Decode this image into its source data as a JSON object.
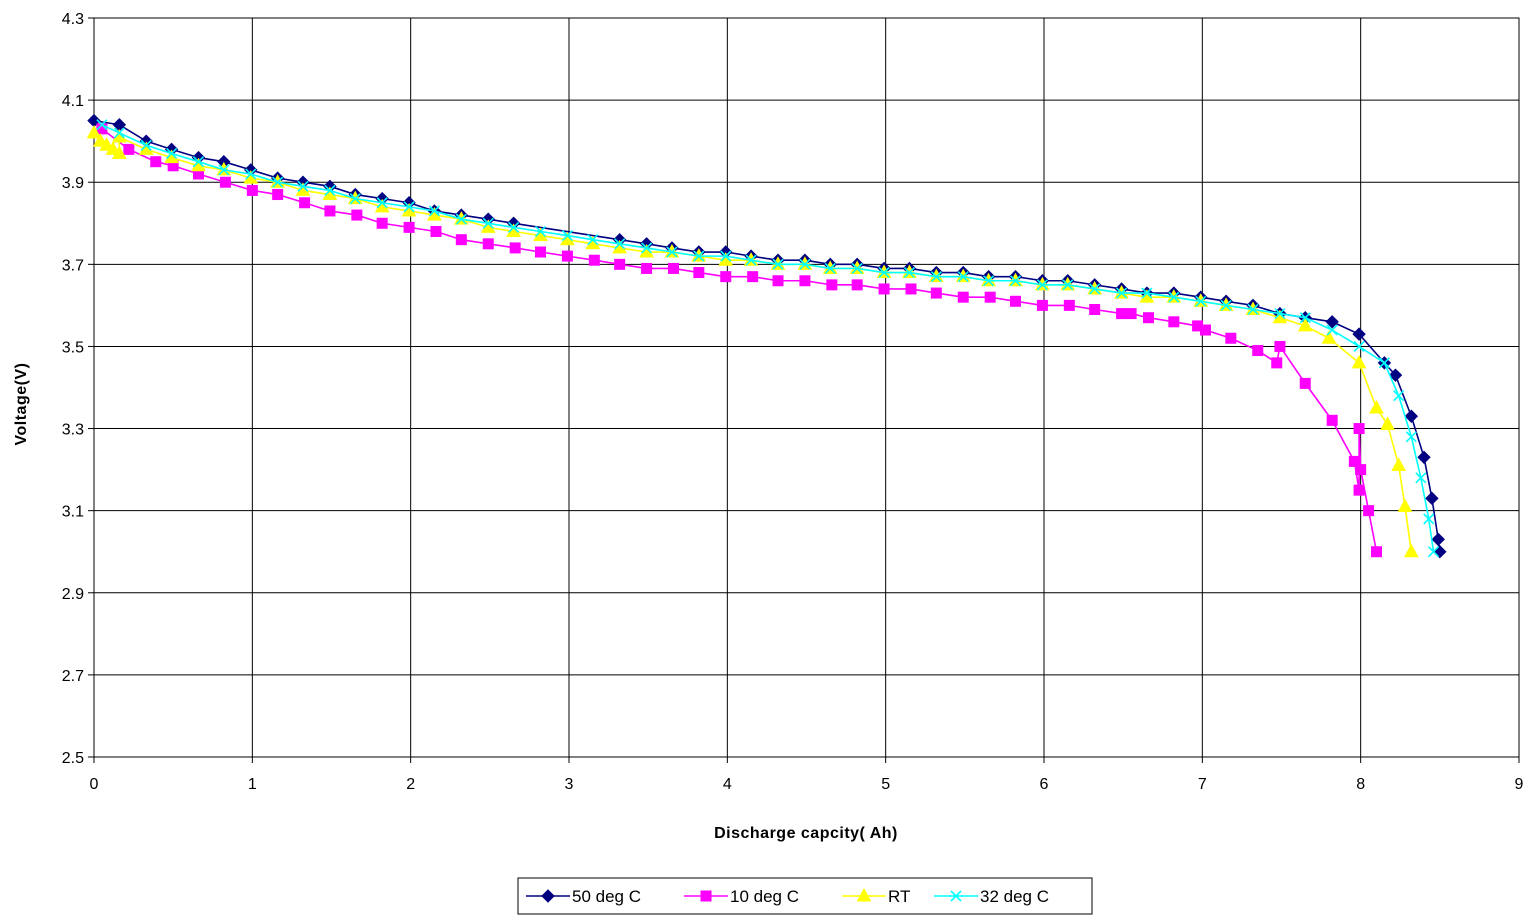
{
  "chart_data": {
    "type": "line",
    "title": "",
    "xlabel": "Discharge capcity( Ah)",
    "ylabel": "Voltage(V)",
    "xlim": [
      0,
      9
    ],
    "ylim": [
      2.5,
      4.3
    ],
    "x_ticks": [
      "0",
      "1",
      "2",
      "3",
      "4",
      "5",
      "6",
      "7",
      "8",
      "9"
    ],
    "y_ticks": [
      "2.5",
      "2.7",
      "2.9",
      "3.1",
      "3.3",
      "3.5",
      "3.7",
      "3.9",
      "4.1",
      "4.3"
    ],
    "grid": true,
    "legend_position": "bottom",
    "series": [
      {
        "name": "50 deg C",
        "color": "#000080",
        "marker": "diamond",
        "x": [
          0.0,
          0.16,
          0.33,
          0.49,
          0.66,
          0.82,
          0.99,
          1.16,
          1.32,
          1.49,
          1.65,
          1.82,
          1.99,
          2.15,
          2.32,
          2.49,
          2.65,
          3.32,
          3.49,
          3.65,
          3.82,
          3.99,
          4.15,
          4.32,
          4.49,
          4.65,
          4.82,
          4.99,
          5.15,
          5.32,
          5.49,
          5.65,
          5.82,
          5.99,
          6.15,
          6.32,
          6.49,
          6.65,
          6.82,
          6.99,
          7.15,
          7.32,
          7.49,
          7.65,
          7.82,
          7.99,
          8.15,
          8.22,
          8.32,
          8.4,
          8.45,
          8.49,
          8.5
        ],
        "y": [
          4.05,
          4.04,
          4.0,
          3.98,
          3.96,
          3.95,
          3.93,
          3.91,
          3.9,
          3.89,
          3.87,
          3.86,
          3.85,
          3.83,
          3.82,
          3.81,
          3.8,
          3.76,
          3.75,
          3.74,
          3.73,
          3.73,
          3.72,
          3.71,
          3.71,
          3.7,
          3.7,
          3.69,
          3.69,
          3.68,
          3.68,
          3.67,
          3.67,
          3.66,
          3.66,
          3.65,
          3.64,
          3.63,
          3.63,
          3.62,
          3.61,
          3.6,
          3.58,
          3.57,
          3.56,
          3.53,
          3.46,
          3.43,
          3.33,
          3.23,
          3.13,
          3.03,
          3.0
        ]
      },
      {
        "name": "10 deg C",
        "color": "#FF00FF",
        "marker": "square",
        "x": [
          0.05,
          0.22,
          0.39,
          0.5,
          0.66,
          0.83,
          1.0,
          1.16,
          1.33,
          1.49,
          1.66,
          1.82,
          1.99,
          2.16,
          2.32,
          2.49,
          2.66,
          2.82,
          2.99,
          3.16,
          3.32,
          3.49,
          3.66,
          3.82,
          3.99,
          4.16,
          4.32,
          4.49,
          4.66,
          4.82,
          4.99,
          5.16,
          5.32,
          5.49,
          5.66,
          5.82,
          5.99,
          6.16,
          6.32,
          6.49,
          6.55,
          6.66,
          6.82,
          6.97,
          7.02,
          7.18,
          7.35,
          7.47,
          7.49,
          7.65,
          7.82,
          7.96,
          7.99,
          7.99,
          8.0,
          8.05,
          8.1
        ],
        "y": [
          4.03,
          3.98,
          3.95,
          3.94,
          3.92,
          3.9,
          3.88,
          3.87,
          3.85,
          3.83,
          3.82,
          3.8,
          3.79,
          3.78,
          3.76,
          3.75,
          3.74,
          3.73,
          3.72,
          3.71,
          3.7,
          3.69,
          3.69,
          3.68,
          3.67,
          3.67,
          3.66,
          3.66,
          3.65,
          3.65,
          3.64,
          3.64,
          3.63,
          3.62,
          3.62,
          3.61,
          3.6,
          3.6,
          3.59,
          3.58,
          3.58,
          3.57,
          3.56,
          3.55,
          3.54,
          3.52,
          3.49,
          3.46,
          3.5,
          3.41,
          3.32,
          3.22,
          3.15,
          3.3,
          3.2,
          3.1,
          3.0
        ]
      },
      {
        "name": "RT",
        "color": "#FFFF00",
        "marker": "triangle",
        "x": [
          0.0,
          0.04,
          0.08,
          0.12,
          0.16,
          0.16,
          0.33,
          0.49,
          0.66,
          0.82,
          0.99,
          1.16,
          1.32,
          1.49,
          1.65,
          1.82,
          1.99,
          2.15,
          2.32,
          2.49,
          2.65,
          2.82,
          2.99,
          3.15,
          3.32,
          3.49,
          3.65,
          3.82,
          3.99,
          4.15,
          4.32,
          4.49,
          4.65,
          4.82,
          4.99,
          5.15,
          5.32,
          5.49,
          5.65,
          5.82,
          5.99,
          6.15,
          6.32,
          6.49,
          6.65,
          6.82,
          6.99,
          7.15,
          7.32,
          7.49,
          7.65,
          7.8,
          7.99,
          8.1,
          8.17,
          8.24,
          8.28,
          8.32
        ],
        "y": [
          4.02,
          4.0,
          3.99,
          3.98,
          3.97,
          4.01,
          3.98,
          3.96,
          3.94,
          3.93,
          3.91,
          3.9,
          3.88,
          3.87,
          3.86,
          3.84,
          3.83,
          3.82,
          3.81,
          3.79,
          3.78,
          3.77,
          3.76,
          3.75,
          3.74,
          3.73,
          3.73,
          3.72,
          3.71,
          3.71,
          3.7,
          3.7,
          3.69,
          3.69,
          3.68,
          3.68,
          3.67,
          3.67,
          3.66,
          3.66,
          3.65,
          3.65,
          3.64,
          3.63,
          3.62,
          3.62,
          3.61,
          3.6,
          3.59,
          3.57,
          3.55,
          3.52,
          3.46,
          3.35,
          3.31,
          3.21,
          3.11,
          3.0
        ]
      },
      {
        "name": "32 deg C",
        "color": "#00FFFF",
        "marker": "x",
        "x": [
          0.05,
          0.16,
          0.33,
          0.49,
          0.66,
          0.82,
          0.99,
          1.16,
          1.32,
          1.49,
          1.65,
          1.82,
          1.99,
          2.15,
          2.32,
          2.49,
          2.65,
          2.82,
          2.99,
          3.15,
          3.32,
          3.49,
          3.65,
          3.82,
          3.99,
          4.15,
          4.32,
          4.49,
          4.65,
          4.82,
          4.99,
          5.15,
          5.32,
          5.49,
          5.65,
          5.82,
          5.99,
          6.15,
          6.32,
          6.49,
          6.65,
          6.82,
          6.99,
          7.15,
          7.32,
          7.49,
          7.65,
          7.82,
          7.99,
          8.15,
          8.24,
          8.32,
          8.38,
          8.43,
          8.46
        ],
        "y": [
          4.04,
          4.02,
          3.99,
          3.97,
          3.95,
          3.93,
          3.92,
          3.9,
          3.89,
          3.88,
          3.86,
          3.85,
          3.84,
          3.83,
          3.81,
          3.8,
          3.79,
          3.78,
          3.77,
          3.76,
          3.75,
          3.74,
          3.73,
          3.72,
          3.72,
          3.71,
          3.7,
          3.7,
          3.69,
          3.69,
          3.68,
          3.68,
          3.67,
          3.67,
          3.66,
          3.66,
          3.65,
          3.65,
          3.64,
          3.63,
          3.63,
          3.62,
          3.61,
          3.6,
          3.59,
          3.58,
          3.57,
          3.54,
          3.5,
          3.46,
          3.38,
          3.28,
          3.18,
          3.08,
          3.0
        ]
      }
    ]
  }
}
